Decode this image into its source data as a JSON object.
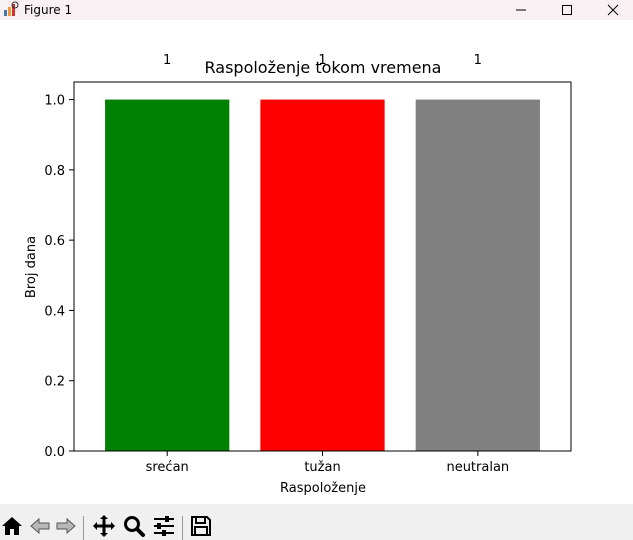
{
  "window": {
    "title": "Figure 1",
    "icon": "matplotlib-figure-icon",
    "controls": [
      "minimize-icon",
      "maximize-icon",
      "close-icon"
    ]
  },
  "toolbar": {
    "tools": [
      "home-icon",
      "back-arrow-icon",
      "forward-arrow-icon",
      "pan-move-icon",
      "zoom-magnifier-icon",
      "configure-subplots-icon",
      "save-disk-icon"
    ]
  },
  "chart_data": {
    "type": "bar",
    "title": "Raspoloženje tokom vremena",
    "xlabel": "Raspoloženje",
    "ylabel": "Broj dana",
    "categories": [
      "srećan",
      "tužan",
      "neutralan"
    ],
    "values": [
      1,
      1,
      1
    ],
    "data_labels": [
      "1",
      "1",
      "1"
    ],
    "colors": [
      "#008000",
      "#ff0000",
      "#808080"
    ],
    "ylim": [
      0,
      1.05
    ],
    "yticks": [
      0.0,
      0.2,
      0.4,
      0.6,
      0.8,
      1.0
    ],
    "ytick_labels": [
      "0.0",
      "0.2",
      "0.4",
      "0.6",
      "0.8",
      "1.0"
    ],
    "grid": false,
    "legend": "none"
  }
}
